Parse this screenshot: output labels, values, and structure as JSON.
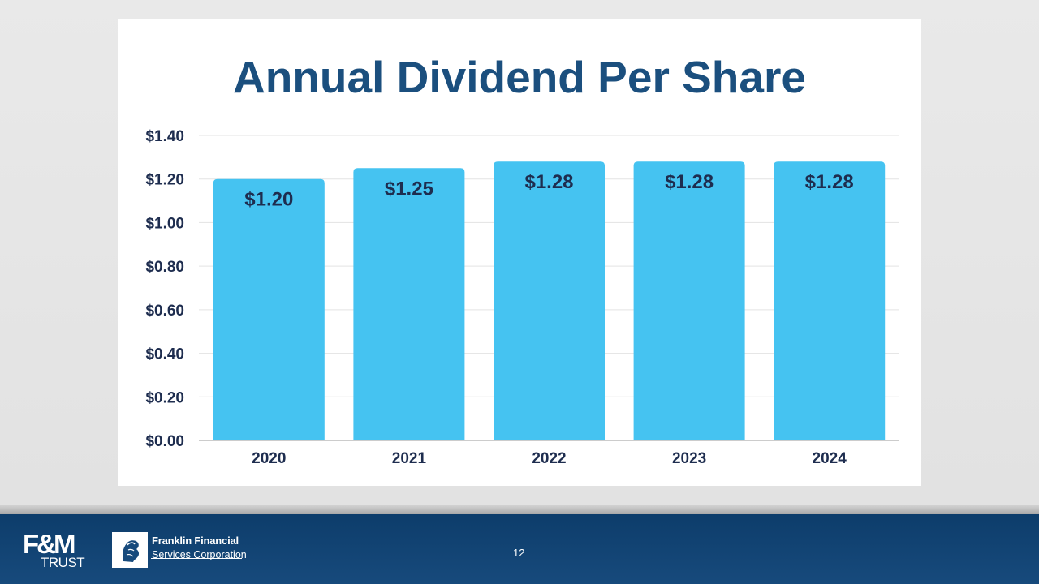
{
  "slide": {
    "page_number": "12"
  },
  "footer": {
    "fm_logo": {
      "mark": "F&M",
      "subtitle": "TRUST"
    },
    "ffsc_logo": {
      "line1": "Franklin Financial",
      "line2": "Services Corporation"
    }
  },
  "colors": {
    "bar": "#45c3f1",
    "title": "#1b4f7e",
    "label": "#1e2d4f",
    "grid": "#e3e3e3",
    "footer": "#0d3d6b"
  },
  "chart_data": {
    "type": "bar",
    "title": "Annual Dividend Per Share",
    "categories": [
      "2020",
      "2021",
      "2022",
      "2023",
      "2024"
    ],
    "values": [
      1.2,
      1.25,
      1.28,
      1.28,
      1.28
    ],
    "value_labels": [
      "$1.20",
      "$1.25",
      "$1.28",
      "$1.28",
      "$1.28"
    ],
    "y_ticks": [
      0,
      0.2,
      0.4,
      0.6,
      0.8,
      1.0,
      1.2,
      1.4
    ],
    "y_tick_labels": [
      "$0.00",
      "$0.20",
      "$0.40",
      "$0.60",
      "$0.80",
      "$1.00",
      "$1.20",
      "$1.40"
    ],
    "ylim": [
      0,
      1.4
    ],
    "xlabel": "",
    "ylabel": "",
    "grid": true,
    "legend": "none"
  }
}
